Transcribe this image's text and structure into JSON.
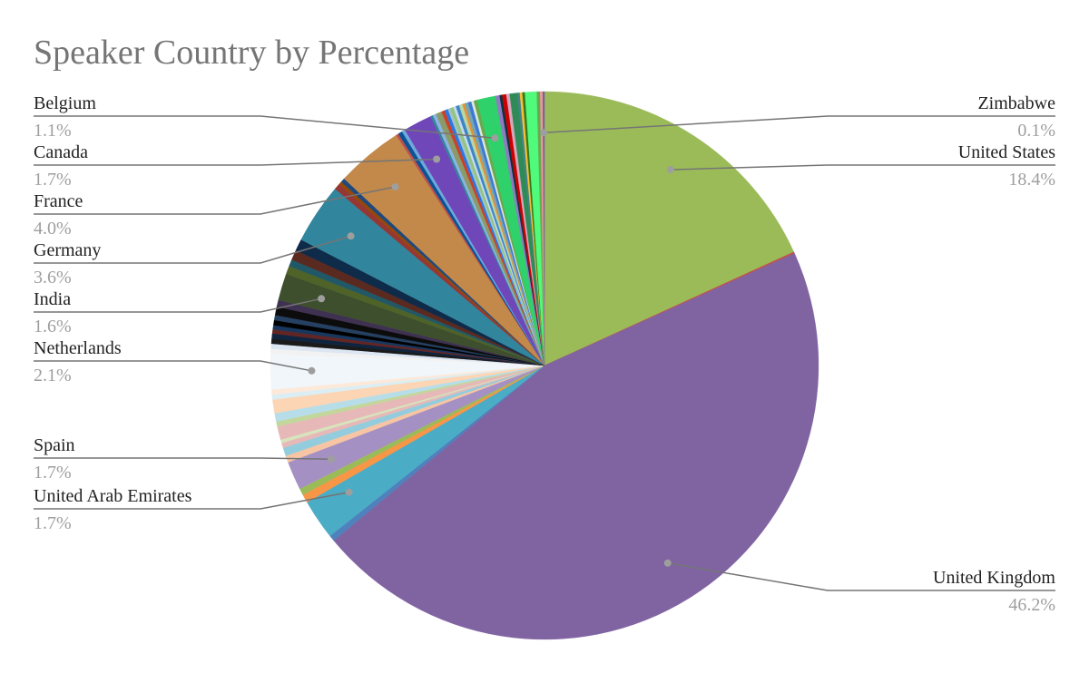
{
  "chart_data": {
    "type": "pie",
    "title": "Speaker Country by Percentage",
    "start_angle_deg": 0,
    "labeled_slices": [
      {
        "label": "United States",
        "value": 18.4,
        "pct_label": "18.4%",
        "color": "#9bbb59"
      },
      {
        "label": "United Kingdom",
        "value": 46.2,
        "pct_label": "46.2%",
        "color": "#8064a2"
      },
      {
        "label": "United Arab Emirates",
        "value": 1.7,
        "pct_label": "1.7%",
        "color": "#4bacc6"
      },
      {
        "label": "Spain",
        "value": 1.7,
        "pct_label": "1.7%",
        "color": "#a490c2"
      },
      {
        "label": "Netherlands",
        "value": 2.1,
        "pct_label": "2.1%",
        "color": "#f0f6fa"
      },
      {
        "label": "India",
        "value": 1.6,
        "pct_label": "1.6%",
        "color": "#3d4f2d"
      },
      {
        "label": "Germany",
        "value": 3.6,
        "pct_label": "3.6%",
        "color": "#31859c"
      },
      {
        "label": "France",
        "value": 4.0,
        "pct_label": "4.0%",
        "color": "#c2894a"
      },
      {
        "label": "Canada",
        "value": 1.7,
        "pct_label": "1.7%",
        "color": "#6f47b8"
      },
      {
        "label": "Belgium",
        "value": 1.1,
        "pct_label": "1.1%",
        "color": "#2ed16a"
      },
      {
        "label": "Zimbabwe",
        "value": 0.1,
        "pct_label": "0.1%",
        "color": "#7b5fa0"
      }
    ],
    "unlabeled_slices": [
      {
        "value": 0.1,
        "color": "#c0504d"
      },
      {
        "value": 0.35,
        "color": "#4f81bd"
      },
      {
        "value": 0.7,
        "color": "#4bacc6"
      },
      {
        "value": 0.5,
        "color": "#f79646"
      },
      {
        "value": 0.4,
        "color": "#9bbb59"
      },
      {
        "value": 0.4,
        "color": "#f7c5a4"
      },
      {
        "value": 0.5,
        "color": "#93cddd"
      },
      {
        "value": 0.3,
        "color": "#e6b9b8"
      },
      {
        "value": 0.2,
        "color": "#d7e4bd"
      },
      {
        "value": 0.8,
        "color": "#e6b9b8"
      },
      {
        "value": 0.3,
        "color": "#c3d69b"
      },
      {
        "value": 0.5,
        "color": "#b7dee8"
      },
      {
        "value": 0.2,
        "color": "#fcd5b5"
      },
      {
        "value": 0.6,
        "color": "#fcd5b5"
      },
      {
        "value": 0.3,
        "color": "#dbeef4"
      },
      {
        "value": 0.3,
        "color": "#fde9d9"
      },
      {
        "value": 0.3,
        "color": "#f2f2f2"
      },
      {
        "value": 0.3,
        "color": "#dce6f2"
      },
      {
        "value": 0.3,
        "color": "#1a1a1a"
      },
      {
        "value": 0.3,
        "color": "#0f243e"
      },
      {
        "value": 0.25,
        "color": "#632523"
      },
      {
        "value": 0.25,
        "color": "#17375e"
      },
      {
        "value": 0.3,
        "color": "#000000"
      },
      {
        "value": 0.3,
        "color": "#254061"
      },
      {
        "value": 0.5,
        "color": "#0c0c0c"
      },
      {
        "value": 0.4,
        "color": "#3f3151"
      },
      {
        "value": 0.5,
        "color": "#4f6228"
      },
      {
        "value": 0.4,
        "color": "#205867"
      },
      {
        "value": 0.6,
        "color": "#5a2a20"
      },
      {
        "value": 0.7,
        "color": "#0f2b4a"
      },
      {
        "value": 0.35,
        "color": "#953734"
      },
      {
        "value": 0.2,
        "color": "#974806"
      },
      {
        "value": 0.25,
        "color": "#1f497d"
      },
      {
        "value": 0.15,
        "color": "#c0504d"
      },
      {
        "value": 0.25,
        "color": "#0b5394"
      },
      {
        "value": 0.2,
        "color": "#6fa8dc"
      },
      {
        "value": 0.15,
        "color": "#31869b"
      },
      {
        "value": 0.2,
        "color": "#8db3e2"
      },
      {
        "value": 0.35,
        "color": "#8b9a6a"
      },
      {
        "value": 0.2,
        "color": "#cc4125"
      },
      {
        "value": 0.2,
        "color": "#2b78e4"
      },
      {
        "value": 0.15,
        "color": "#a2c4c9"
      },
      {
        "value": 0.2,
        "color": "#93c47d"
      },
      {
        "value": 0.15,
        "color": "#c9daf8"
      },
      {
        "value": 0.2,
        "color": "#3d85c6"
      },
      {
        "value": 0.2,
        "color": "#b6d7a8"
      },
      {
        "value": 0.15,
        "color": "#e69138"
      },
      {
        "value": 0.2,
        "color": "#76a5af"
      },
      {
        "value": 0.2,
        "color": "#3c78d8"
      },
      {
        "value": 0.15,
        "color": "#d9ead3"
      },
      {
        "value": 0.2,
        "color": "#6aa84f"
      },
      {
        "value": 0.25,
        "color": "#8e7cc3"
      },
      {
        "value": 0.15,
        "color": "#0c343d"
      },
      {
        "value": 0.25,
        "color": "#cc0000"
      },
      {
        "value": 0.2,
        "color": "#d5a6bd"
      },
      {
        "value": 0.45,
        "color": "#2e8b57"
      },
      {
        "value": 0.15,
        "color": "#45818e"
      },
      {
        "value": 0.15,
        "color": "#f1c232"
      },
      {
        "value": 0.15,
        "color": "#38761d"
      },
      {
        "value": 0.7,
        "color": "#50fa7b"
      },
      {
        "value": 0.2,
        "color": "#6aa84f"
      },
      {
        "value": 0.15,
        "color": "#ea9999"
      }
    ],
    "slice_order": [
      "L0",
      "U0",
      "L1",
      "U1",
      "U2",
      "L2",
      "U3",
      "U4",
      "L3",
      "U5",
      "U6",
      "U7",
      "U8",
      "U9",
      "U10",
      "U11",
      "U12",
      "U13",
      "U14",
      "U15",
      "L4",
      "U16",
      "U17",
      "U18",
      "U19",
      "U20",
      "U21",
      "U22",
      "U23",
      "U24",
      "U25",
      "L5",
      "U26",
      "U27",
      "U28",
      "U29",
      "L6",
      "U30",
      "U31",
      "U32",
      "L7",
      "U33",
      "U34",
      "U35",
      "L8",
      "U36",
      "U37",
      "U38",
      "U39",
      "U40",
      "U41",
      "U42",
      "U43",
      "U44",
      "U45",
      "U46",
      "U47",
      "U48",
      "U49",
      "U50",
      "L9",
      "U51",
      "U52",
      "U53",
      "U54",
      "U55",
      "U56",
      "U57",
      "U58",
      "U59",
      "U60",
      "U61",
      "L10"
    ]
  }
}
